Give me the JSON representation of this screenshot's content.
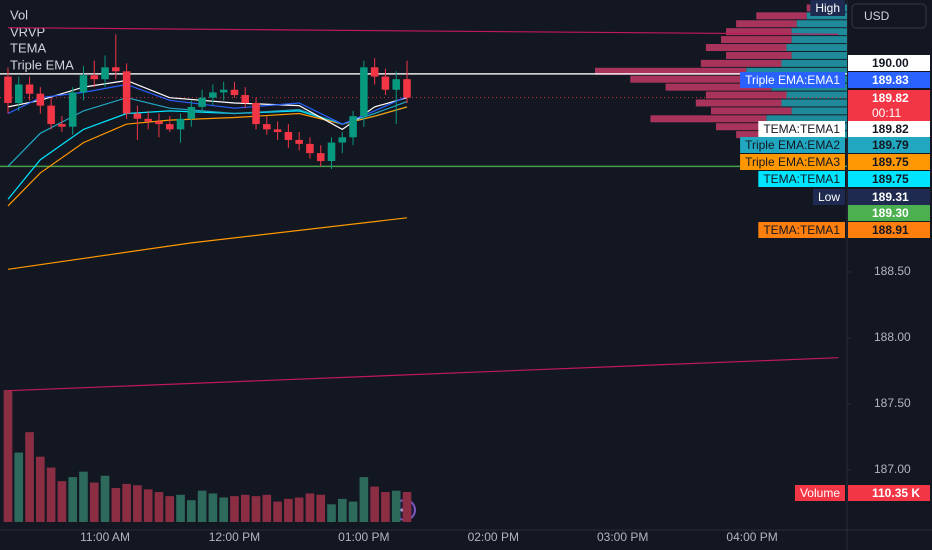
{
  "legend": [
    "Vol",
    "VRVP",
    "TEMA",
    "Triple EMA"
  ],
  "currency": "USD",
  "chart_data": {
    "type": "candlestick",
    "xlim": [
      611.3,
      1004
    ],
    "ylim": [
      186.545,
      190.56
    ],
    "xticks": [
      {
        "value": 660,
        "label": "11:00 AM"
      },
      {
        "value": 720,
        "label": "12:00 PM"
      },
      {
        "value": 780,
        "label": "01:00 PM"
      },
      {
        "value": 840,
        "label": "02:00 PM"
      },
      {
        "value": 900,
        "label": "03:00 PM"
      },
      {
        "value": 960,
        "label": "04:00 PM"
      }
    ],
    "yticks": [
      {
        "value": 188.5,
        "label": "188.50"
      },
      {
        "value": 188,
        "label": "188.00"
      },
      {
        "value": 187.5,
        "label": "187.50"
      },
      {
        "value": 187,
        "label": "187.00"
      }
    ],
    "x": [
      615,
      620,
      625,
      630,
      635,
      640,
      645,
      650,
      655,
      660,
      665,
      670,
      675,
      680,
      685,
      690,
      695,
      700,
      705,
      710,
      715,
      720,
      725,
      730,
      735,
      740,
      745,
      750,
      755,
      760,
      765,
      770,
      775,
      780,
      785,
      790,
      795,
      800
    ],
    "open": [
      189.98,
      189.78,
      189.92,
      189.85,
      189.76,
      189.62,
      189.6,
      189.86,
      189.99,
      189.96,
      190.05,
      190.02,
      189.7,
      189.66,
      189.64,
      189.62,
      189.58,
      189.66,
      189.75,
      189.82,
      189.86,
      189.88,
      189.84,
      189.78,
      189.62,
      189.58,
      189.56,
      189.5,
      189.47,
      189.4,
      189.34,
      189.48,
      189.52,
      189.68,
      190.05,
      189.98,
      189.88,
      189.96
    ],
    "high": [
      190.05,
      189.98,
      189.98,
      189.9,
      189.82,
      189.68,
      189.9,
      190.06,
      190.1,
      190.14,
      190.3,
      190.08,
      189.76,
      189.72,
      189.7,
      189.68,
      189.7,
      189.8,
      189.88,
      189.92,
      189.94,
      189.94,
      189.9,
      189.82,
      189.68,
      189.64,
      189.62,
      189.56,
      189.52,
      189.46,
      189.52,
      189.56,
      189.72,
      190.1,
      190.12,
      190.04,
      190.02,
      190.1
    ],
    "low": [
      189.7,
      189.72,
      189.8,
      189.7,
      189.58,
      189.56,
      189.54,
      189.8,
      189.9,
      189.9,
      189.96,
      189.66,
      189.5,
      189.58,
      189.52,
      189.56,
      189.48,
      189.6,
      189.7,
      189.76,
      189.8,
      189.82,
      189.74,
      189.58,
      189.54,
      189.5,
      189.44,
      189.42,
      189.36,
      189.3,
      189.28,
      189.4,
      189.46,
      189.6,
      189.92,
      189.84,
      189.62,
      189.78
    ],
    "close": [
      189.78,
      189.92,
      189.85,
      189.76,
      189.62,
      189.6,
      189.86,
      189.99,
      189.96,
      190.05,
      190.02,
      189.7,
      189.66,
      189.64,
      189.62,
      189.58,
      189.66,
      189.75,
      189.82,
      189.86,
      189.88,
      189.84,
      189.78,
      189.62,
      189.58,
      189.56,
      189.5,
      189.47,
      189.4,
      189.34,
      189.48,
      189.52,
      189.68,
      190.05,
      189.98,
      189.88,
      189.96,
      189.82
    ],
    "up_color": "#089981",
    "down_color": "#f23645",
    "volume": {
      "values": [
        485,
        255,
        330,
        240,
        200,
        150,
        165,
        185,
        145,
        170,
        125,
        140,
        135,
        120,
        110,
        95,
        100,
        80,
        115,
        105,
        90,
        95,
        100,
        95,
        100,
        75,
        85,
        90,
        105,
        100,
        65,
        85,
        75,
        165,
        130,
        110,
        115,
        110.35
      ],
      "up_color": "#2e6a5c",
      "down_color": "#8b2e43"
    },
    "profile": {
      "prices": [
        190.5,
        190.44,
        190.38,
        190.32,
        190.26,
        190.2,
        190.14,
        190.08,
        190.02,
        189.96,
        189.9,
        189.84,
        189.78,
        189.72,
        189.66,
        189.6,
        189.54
      ],
      "up": [
        20,
        40,
        50,
        55,
        55,
        60,
        55,
        65,
        100,
        90,
        75,
        60,
        65,
        55,
        80,
        55,
        45
      ],
      "down": [
        20,
        50,
        60,
        65,
        70,
        80,
        65,
        80,
        150,
        125,
        105,
        80,
        85,
        80,
        115,
        75,
        65
      ],
      "up_color": "#1f8a99",
      "down_color": "#a8345c"
    },
    "lines": [
      {
        "color": "#ff9800",
        "x": [
          615,
          700,
          800
        ],
        "values": [
          188.52,
          188.72,
          188.91
        ]
      },
      {
        "color": "#00e5ff",
        "x": [
          615,
          630,
          650,
          670,
          690,
          720,
          750,
          770,
          785,
          800
        ],
        "values": [
          189.05,
          189.35,
          189.58,
          189.7,
          189.72,
          189.7,
          189.72,
          189.62,
          189.68,
          189.75
        ]
      },
      {
        "color": "#ff9800",
        "x": [
          615,
          630,
          650,
          670,
          690,
          720,
          750,
          770,
          785,
          800
        ],
        "values": [
          189.0,
          189.25,
          189.48,
          189.62,
          189.65,
          189.67,
          189.7,
          189.62,
          189.68,
          189.75
        ]
      },
      {
        "color": "#22a7c0",
        "x": [
          615,
          630,
          650,
          670,
          690,
          720,
          750,
          770,
          785,
          800
        ],
        "values": [
          189.3,
          189.55,
          189.72,
          189.82,
          189.74,
          189.7,
          189.73,
          189.62,
          189.7,
          189.79
        ]
      },
      {
        "color": "#ffffff",
        "x": [
          615,
          630,
          650,
          670,
          690,
          720,
          750,
          770,
          785,
          800
        ],
        "values": [
          189.75,
          189.8,
          189.9,
          189.95,
          189.82,
          189.78,
          189.76,
          189.58,
          189.75,
          189.82
        ]
      },
      {
        "color": "#2962ff",
        "x": [
          615,
          630,
          650,
          670,
          690,
          720,
          750,
          770,
          785,
          800
        ],
        "values": [
          189.7,
          189.82,
          189.86,
          189.92,
          189.8,
          189.74,
          189.78,
          189.62,
          189.72,
          189.83
        ]
      }
    ],
    "trendlines": [
      {
        "color": "#c2185b",
        "x": [
          615,
          1000
        ],
        "values": [
          190.35,
          190.3
        ]
      },
      {
        "color": "#c2185b",
        "x": [
          615,
          1000
        ],
        "values": [
          187.6,
          187.85
        ]
      }
    ],
    "hlines": [
      {
        "value": 190,
        "color": "#ffffff",
        "style": "solid"
      },
      {
        "value": 189.3,
        "color": "#4caf50",
        "style": "solid"
      },
      {
        "value": 189.82,
        "color": "#f23645",
        "style": "dotted"
      }
    ],
    "tags": [
      {
        "name": "High",
        "bg": "#1e2a4f",
        "fg": "#ffffff"
      },
      {
        "value": 190,
        "value_label": "190.00",
        "bg": "#ffffff",
        "fg": "#131722"
      },
      {
        "name": "Triple EMA:EMA1",
        "value": 189.83,
        "bg": "#2962ff",
        "fg": "#ffffff"
      },
      {
        "value": 189.82,
        "sub": "00:11",
        "bg": "#f23645",
        "fg": "#ffffff"
      },
      {
        "name": "TEMA:TEMA1",
        "value": 189.82,
        "bg": "#ffffff",
        "fg": "#131722"
      },
      {
        "name": "Triple EMA:EMA2",
        "value": 189.79,
        "bg": "#22a7c0",
        "fg": "#131722"
      },
      {
        "name": "Triple EMA:EMA3",
        "value": 189.75,
        "bg": "#ff9800",
        "fg": "#131722"
      },
      {
        "name": "TEMA:TEMA1",
        "value": 189.75,
        "bg": "#00e5ff",
        "fg": "#131722"
      },
      {
        "name": "Low",
        "value": 189.31,
        "bg": "#1e2a4f",
        "fg": "#ffffff"
      },
      {
        "value": 189.3,
        "value_label": "189.30",
        "bg": "#4caf50",
        "fg": "#ffffff"
      },
      {
        "name": "TEMA:TEMA1",
        "value": 188.91,
        "bg": "#ff7f0e",
        "fg": "#131722"
      },
      {
        "name": "Volume",
        "value": 110.35,
        "value_label": "110.35 K",
        "bg": "#f23645",
        "fg": "#ffffff"
      }
    ]
  }
}
